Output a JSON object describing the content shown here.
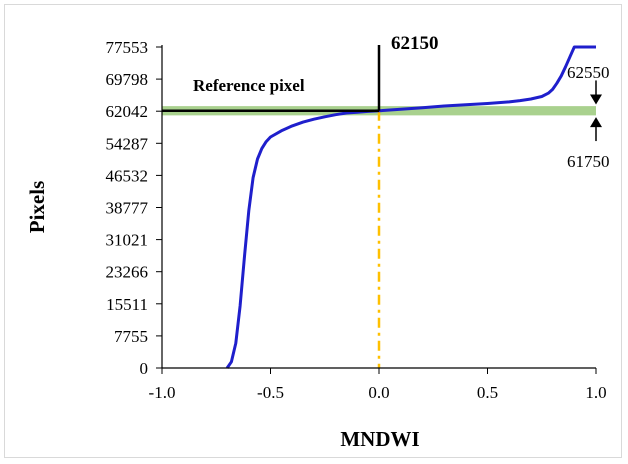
{
  "chart_data": {
    "type": "line",
    "xlabel": "MNDWI",
    "ylabel": "Pixels",
    "xlim": [
      -1.0,
      1.0
    ],
    "ylim": [
      0,
      77553
    ],
    "x_ticks": [
      "-1.0",
      "-0.5",
      "0.0",
      "0.5",
      "1.0"
    ],
    "y_ticks": [
      "0",
      "7755",
      "15511",
      "23266",
      "31021",
      "38777",
      "46532",
      "54287",
      "62042",
      "69798",
      "77553"
    ],
    "grid": false,
    "series": [
      {
        "color": "#1f1fcc",
        "x": [
          -0.7,
          -0.68,
          -0.66,
          -0.64,
          -0.62,
          -0.6,
          -0.58,
          -0.56,
          -0.54,
          -0.52,
          -0.5,
          -0.45,
          -0.4,
          -0.35,
          -0.3,
          -0.25,
          -0.2,
          -0.15,
          -0.1,
          -0.05,
          0.0,
          0.1,
          0.2,
          0.3,
          0.4,
          0.5,
          0.6,
          0.65,
          0.7,
          0.75,
          0.78,
          0.8,
          0.82,
          0.84,
          0.86,
          0.88,
          0.9,
          0.92,
          0.95,
          0.98,
          1.0
        ],
        "y": [
          0,
          1500,
          6000,
          15000,
          27000,
          38000,
          46000,
          50500,
          53000,
          54700,
          55800,
          57300,
          58500,
          59400,
          60100,
          60700,
          61200,
          61600,
          61800,
          62000,
          62150,
          62500,
          62900,
          63300,
          63600,
          63900,
          64300,
          64600,
          65000,
          65600,
          66400,
          67300,
          68800,
          70600,
          72800,
          75200,
          77553,
          77553,
          77553,
          77553,
          77553
        ]
      },
      {
        "color": "#a9d18e",
        "x": [
          -1.0,
          1.0
        ],
        "y": [
          62150,
          62150
        ],
        "band": [
          61750,
          62550
        ]
      }
    ]
  },
  "annotations": {
    "reference_label": "Reference pixel",
    "reference_value": "62150",
    "upper_value": "62550",
    "lower_value": "61750",
    "reference_x": 0.0,
    "reference_y": 62150
  },
  "colors": {
    "curve": "#1f1fcc",
    "band": "#a9d18e",
    "dashdot": "#ffc000",
    "reference": "#000000"
  }
}
